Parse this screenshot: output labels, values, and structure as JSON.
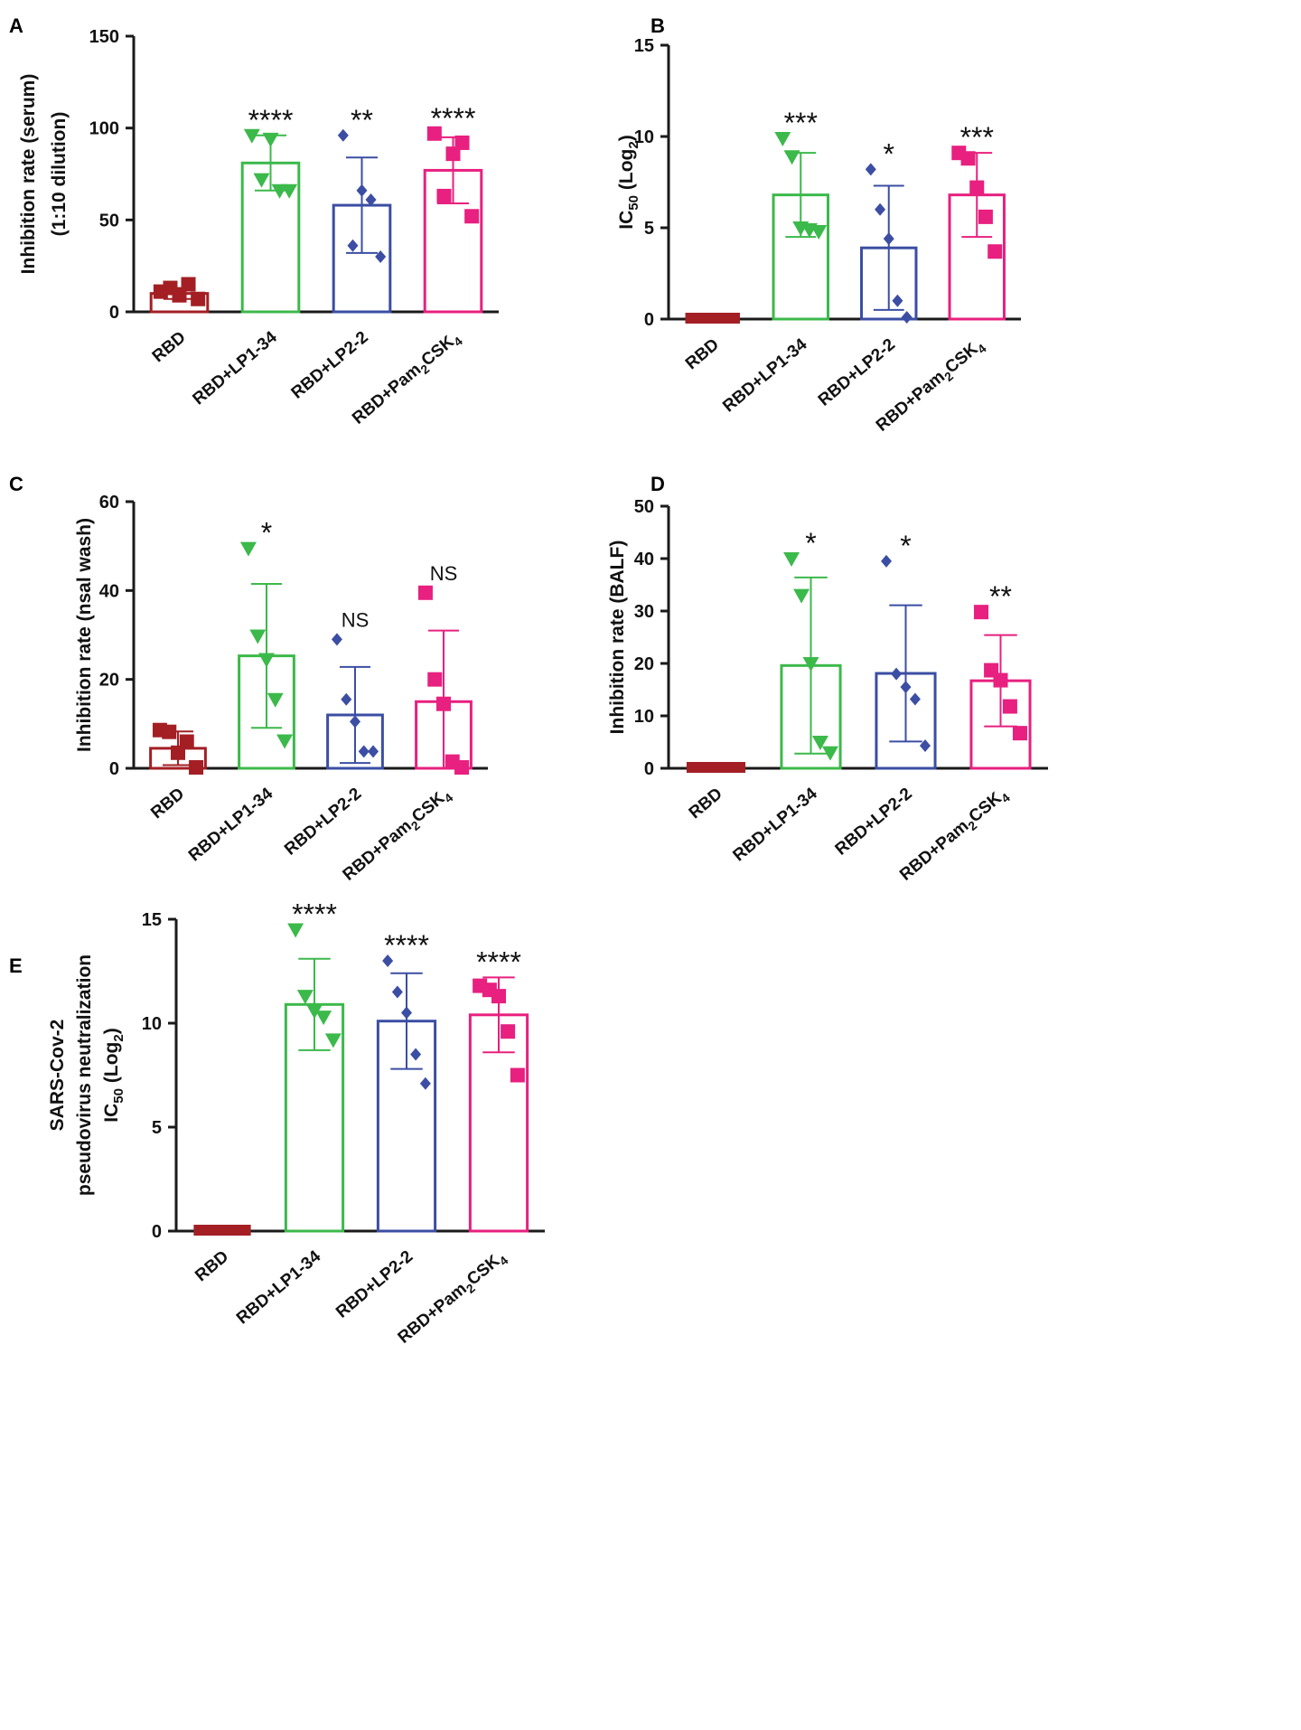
{
  "colors": {
    "RBD": "#a31f24",
    "RBD+LP1-34": "#3cb94b",
    "RBD+LP2-2": "#3b4ea3",
    "RBD+Pam2CSK4": "#e8207f",
    "axis": "#1a1a1a"
  },
  "chart_data": [
    {
      "type": "bar",
      "panel": "A",
      "categories": [
        "RBD",
        "RBD+LP1-34",
        "RBD+LP2-2",
        "RBD+Pam2CSK4"
      ],
      "ylabel_lines": [
        "Inhibition rate (serum)",
        "(1:10 dilution)"
      ],
      "ylim": [
        0,
        150
      ],
      "yticks": [
        0,
        50,
        100,
        150
      ],
      "means": [
        10,
        81,
        58,
        77
      ],
      "sd": [
        3,
        15,
        26,
        18
      ],
      "points": [
        [
          11,
          13,
          9,
          15,
          7
        ],
        [
          96,
          72,
          94,
          66,
          66
        ],
        [
          96,
          36,
          66,
          61,
          30
        ],
        [
          97,
          63,
          86,
          92,
          52
        ]
      ],
      "markers": [
        "square",
        "triangle-down",
        "diamond",
        "square"
      ],
      "significance": [
        "",
        "****",
        "**",
        "****"
      ]
    },
    {
      "type": "bar",
      "panel": "B",
      "categories": [
        "RBD",
        "RBD+LP1-34",
        "RBD+LP2-2",
        "RBD+Pam2CSK4"
      ],
      "ylabel": "IC50 (Log2)",
      "ylim": [
        0,
        15
      ],
      "yticks": [
        0,
        5,
        10,
        15
      ],
      "means": [
        0,
        6.8,
        3.9,
        6.8
      ],
      "sd": [
        0,
        2.3,
        3.4,
        2.3
      ],
      "points": [
        [
          0,
          0,
          0,
          0,
          0
        ],
        [
          9.9,
          8.9,
          5,
          4.9,
          4.8
        ],
        [
          8.2,
          6,
          4.4,
          1,
          0.1
        ],
        [
          9.1,
          8.8,
          7.2,
          5.6,
          3.7
        ]
      ],
      "markers": [
        "square",
        "triangle-down",
        "diamond",
        "square"
      ],
      "significance": [
        "",
        "***",
        "*",
        "***"
      ]
    },
    {
      "type": "bar",
      "panel": "C",
      "categories": [
        "RBD",
        "RBD+LP1-34",
        "RBD+LP2-2",
        "RBD+Pam2CSK4"
      ],
      "ylabel": "Inhibition rate (nsal wash)",
      "ylim": [
        0,
        60
      ],
      "yticks": [
        0,
        20,
        40,
        60
      ],
      "means": [
        4.5,
        25.3,
        12,
        15
      ],
      "sd": [
        3.8,
        16.2,
        10.8,
        16
      ],
      "points": [
        [
          8.6,
          8.2,
          3.5,
          6,
          0.2
        ],
        [
          49.5,
          29.8,
          24.5,
          15.5,
          6.2
        ],
        [
          29,
          15.5,
          10.5,
          3.8,
          3.8
        ],
        [
          39.5,
          20,
          14.5,
          1.5,
          0.2
        ]
      ],
      "markers": [
        "square",
        "triangle-down",
        "diamond",
        "square"
      ],
      "significance": [
        "",
        "*",
        "NS",
        "NS"
      ]
    },
    {
      "type": "bar",
      "panel": "D",
      "categories": [
        "RBD",
        "RBD+LP1-34",
        "RBD+LP2-2",
        "RBD+Pam2CSK4"
      ],
      "ylabel": "Inhibition rate (BALF)",
      "ylim": [
        0,
        50
      ],
      "yticks": [
        0,
        10,
        20,
        30,
        40,
        50
      ],
      "means": [
        0,
        19.6,
        18.1,
        16.7
      ],
      "sd": [
        0,
        16.8,
        13.0,
        8.7
      ],
      "points": [
        [
          0,
          0,
          0,
          0,
          0
        ],
        [
          40,
          33,
          20,
          5,
          3
        ],
        [
          39.5,
          18,
          15.5,
          13.2,
          4.3
        ],
        [
          29.8,
          18.7,
          16.8,
          11.8,
          6.7
        ]
      ],
      "markers": [
        "square",
        "triangle-down",
        "diamond",
        "square"
      ],
      "significance": [
        "",
        "*",
        "*",
        "**"
      ]
    },
    {
      "type": "bar",
      "panel": "E",
      "categories": [
        "RBD",
        "RBD+LP1-34",
        "RBD+LP2-2",
        "RBD+Pam2CSK4"
      ],
      "ylabel_lines": [
        "SARS-Cov-2",
        "pseudovirus neutralization",
        "IC50 (Log2)"
      ],
      "ylim": [
        0,
        15
      ],
      "yticks": [
        0,
        5,
        10,
        15
      ],
      "means": [
        0,
        10.9,
        10.1,
        10.4
      ],
      "sd": [
        0,
        2.2,
        2.3,
        1.8
      ],
      "points": [
        [
          0,
          0,
          0,
          0,
          0
        ],
        [
          14.5,
          11.3,
          10.6,
          10.3,
          9.2
        ],
        [
          13,
          11.5,
          10.5,
          8.5,
          7.1
        ],
        [
          11.8,
          11.6,
          11.3,
          9.6,
          7.5
        ]
      ],
      "markers": [
        "square",
        "triangle-down",
        "diamond",
        "square"
      ],
      "significance": [
        "",
        "****",
        "****",
        "****"
      ]
    }
  ]
}
